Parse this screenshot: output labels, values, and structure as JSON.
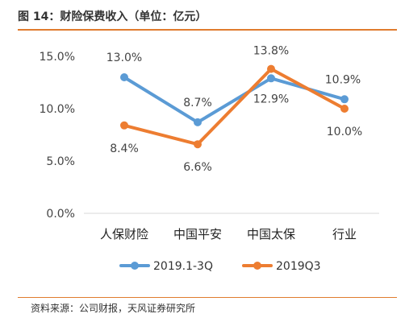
{
  "header": {
    "title": "图 14：财险保费收入（单位：亿元）"
  },
  "footer": {
    "source": "资料来源：公司财报，天风证券研究所"
  },
  "chart_data": {
    "type": "line",
    "title": "图 14：财险保费收入（单位：亿元）",
    "categories": [
      "人保财险",
      "中国平安",
      "中国太保",
      "行业"
    ],
    "y_ticks": [
      "0.0%",
      "5.0%",
      "10.0%",
      "15.0%"
    ],
    "ylim": [
      0,
      15
    ],
    "grid": false,
    "legend": "bottom",
    "series": [
      {
        "name": "2019.1-3Q",
        "color": "#5b9bd5",
        "values": [
          13.0,
          8.7,
          12.9,
          10.9
        ],
        "labels": [
          "13.0%",
          "8.7%",
          "12.9%",
          "10.9%"
        ]
      },
      {
        "name": "2019Q3",
        "color": "#ed7d31",
        "values": [
          8.4,
          6.6,
          13.8,
          10.0
        ],
        "labels": [
          "8.4%",
          "6.6%",
          "13.8%",
          "10.0%"
        ]
      }
    ]
  }
}
